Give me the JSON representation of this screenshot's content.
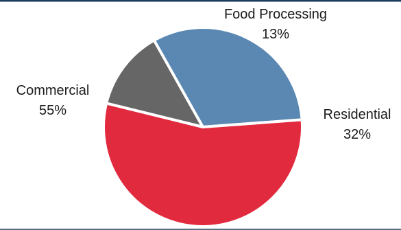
{
  "chart_data": {
    "type": "pie",
    "title": "",
    "slices": [
      {
        "label": "Food Processing",
        "value": 13,
        "value_label": "13%",
        "color": "#666666"
      },
      {
        "label": "Residential",
        "value": 32,
        "value_label": "32%",
        "color": "#5b88b2"
      },
      {
        "label": "Commercial",
        "value": 55,
        "value_label": "55%",
        "color": "#e22a3f"
      }
    ],
    "legend": "none",
    "labels": "outside, category name with percentage"
  },
  "colors": {
    "top_border": "#1f3a5f",
    "bottom_border": "#5f6f82",
    "slice_separator": "#ffffff"
  }
}
